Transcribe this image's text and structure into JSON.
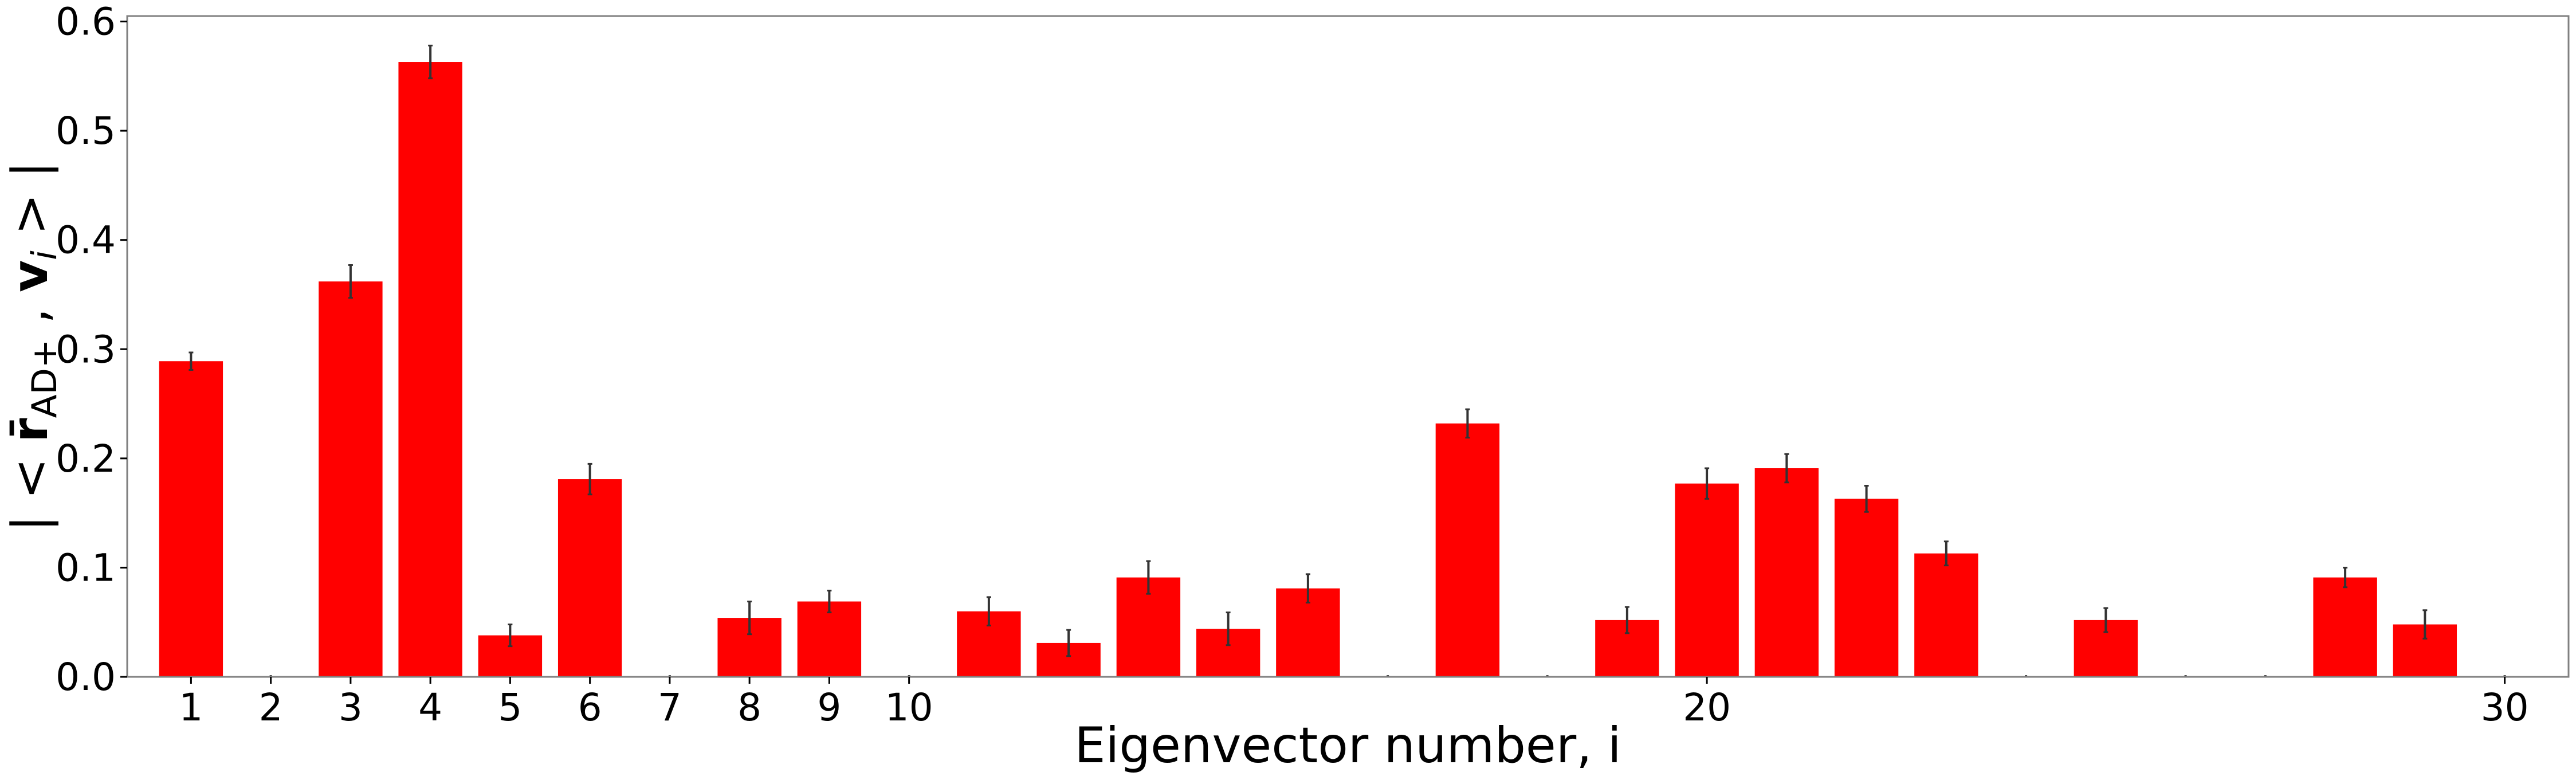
{
  "chart_data": {
    "type": "bar",
    "xlabel": "Eigenvector number, i",
    "ylabel": {
      "prefix": "| < ",
      "vector": "r̄",
      "subscript": "AD+",
      "middle": " , ",
      "vector2": "v",
      "subscript2": "i",
      "suffix": " > |"
    },
    "x": [
      1,
      2,
      3,
      4,
      5,
      6,
      7,
      8,
      9,
      10,
      11,
      12,
      13,
      14,
      15,
      16,
      17,
      18,
      19,
      20,
      21,
      22,
      23,
      24,
      25,
      26,
      27,
      28,
      29,
      30
    ],
    "values": [
      0.289,
      0.0,
      0.362,
      0.563,
      0.038,
      0.181,
      0.0,
      0.054,
      0.069,
      0.0,
      0.06,
      0.031,
      0.091,
      0.044,
      0.081,
      0.0,
      0.232,
      0.0,
      0.052,
      0.177,
      0.191,
      0.163,
      0.113,
      0.0,
      0.052,
      0.0,
      0.0,
      0.091,
      0.048,
      0.0
    ],
    "errors": [
      0.008,
      0.0015,
      0.015,
      0.015,
      0.01,
      0.014,
      0.0015,
      0.015,
      0.01,
      0.0015,
      0.013,
      0.012,
      0.015,
      0.015,
      0.013,
      0.0015,
      0.013,
      0.0015,
      0.012,
      0.014,
      0.013,
      0.012,
      0.011,
      0.0015,
      0.011,
      0.0015,
      0.0015,
      0.009,
      0.013,
      0.0015
    ],
    "xticks": [
      1,
      2,
      3,
      4,
      5,
      6,
      7,
      8,
      9,
      10,
      20,
      30
    ],
    "yticks": [
      0.0,
      0.1,
      0.2,
      0.3,
      0.4,
      0.5,
      0.6
    ],
    "ylim": [
      0,
      0.605
    ],
    "xlim": [
      0.2,
      30.8
    ],
    "grid": false,
    "colors": {
      "bar": "#ff0000",
      "error": "#333333",
      "axes": "#808080",
      "text": "#000000"
    }
  }
}
